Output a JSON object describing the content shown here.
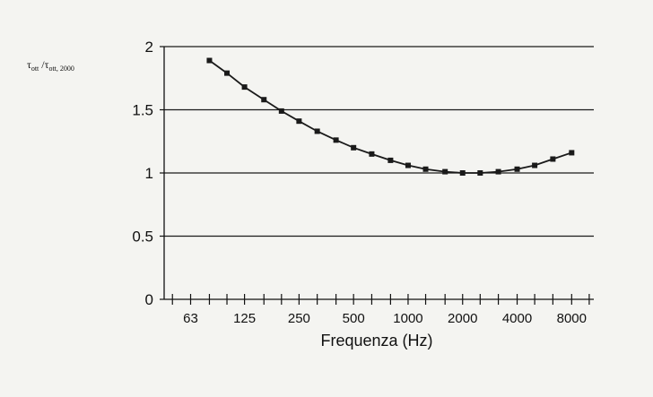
{
  "chart_data": {
    "type": "line",
    "ylabel_parts": {
      "tau1": "τ",
      "sub1": "ott",
      "slash": " /",
      "tau2": "τ",
      "sub2": "ott, 2000"
    },
    "xlabel": "Frequenza (Hz)",
    "x_scale": "log2",
    "xlim": [
      45,
      10600
    ],
    "ylim": [
      0,
      2
    ],
    "y_ticks": [
      "0",
      "0.5",
      "1",
      "1.5",
      "2"
    ],
    "y_gridlines": [
      0.5,
      1,
      1.5,
      2
    ],
    "x_tick_labels": [
      {
        "value": 63,
        "label": "63"
      },
      {
        "value": 125,
        "label": "125"
      },
      {
        "value": 250,
        "label": "250"
      },
      {
        "value": 500,
        "label": "500"
      },
      {
        "value": 1000,
        "label": "1000"
      },
      {
        "value": 2000,
        "label": "2000"
      },
      {
        "value": 4000,
        "label": "4000"
      },
      {
        "value": 8000,
        "label": "8000"
      }
    ],
    "x_minor_ticks": [
      50,
      63,
      80,
      100,
      125,
      160,
      200,
      250,
      315,
      400,
      500,
      630,
      800,
      1000,
      1250,
      1600,
      2000,
      2500,
      3150,
      4000,
      5000,
      6300,
      8000,
      10000
    ],
    "series": [
      {
        "x": [
          80,
          100,
          125,
          160,
          200,
          250,
          315,
          400,
          500,
          630,
          800,
          1000,
          1250,
          1600,
          2000,
          2500,
          3150,
          4000,
          5000,
          6300,
          8000
        ],
        "y": [
          1.89,
          1.79,
          1.68,
          1.58,
          1.49,
          1.41,
          1.33,
          1.26,
          1.2,
          1.15,
          1.1,
          1.06,
          1.03,
          1.01,
          1.0,
          1.0,
          1.01,
          1.03,
          1.06,
          1.11,
          1.16
        ]
      }
    ],
    "colors": {
      "line": "#1a1a1a",
      "grid": "#1a1a1a",
      "axis": "#111111"
    },
    "grid": true,
    "legend": "none"
  }
}
